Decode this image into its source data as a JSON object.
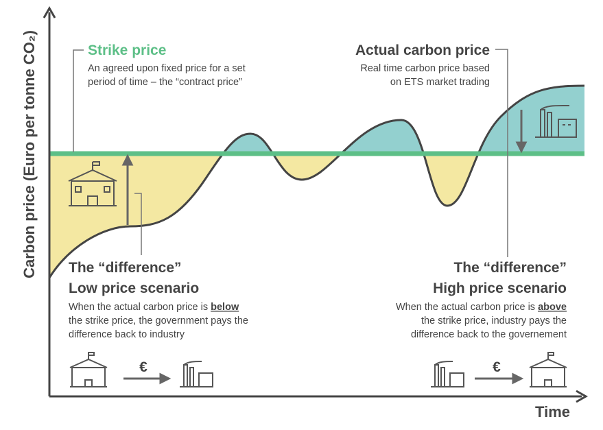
{
  "axes": {
    "y_label": "Carbon price (Euro per tonne CO₂)",
    "x_label": "Time"
  },
  "strike": {
    "title": "Strike price",
    "lines": [
      "An agreed upon fixed price for a set",
      "period of time – the “contract price”"
    ]
  },
  "actual": {
    "title": "Actual carbon price",
    "lines": [
      "Real time carbon price based",
      "on ETS market trading"
    ]
  },
  "low": {
    "title_lines": [
      "The “difference”",
      "Low price scenario"
    ],
    "lead": "When the actual carbon price is",
    "emphasis": "below",
    "lines": [
      "the strike price, the government pays the",
      "difference back to industry"
    ],
    "currency": "€"
  },
  "high": {
    "title_lines": [
      "The “difference”",
      "High price scenario"
    ],
    "lead": "When the actual carbon price is",
    "emphasis": "above",
    "lines": [
      "the strike price, industry pays the",
      "difference back to the governement"
    ],
    "currency": "€"
  }
}
